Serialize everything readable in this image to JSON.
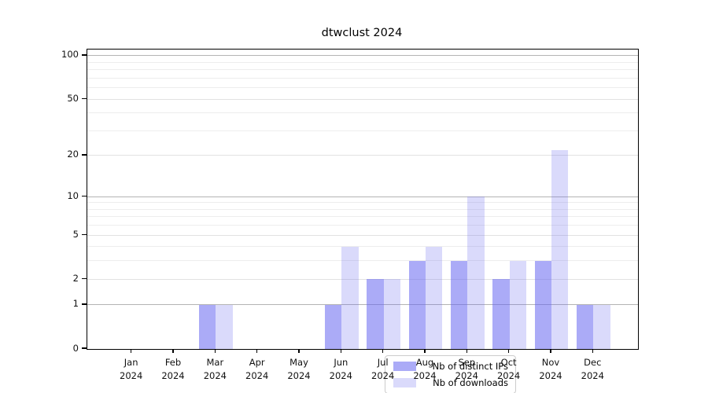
{
  "title": "dtwclust 2024",
  "chart_data": {
    "type": "bar",
    "title": "dtwclust 2024",
    "yscale": "log1p",
    "grid": true,
    "legend_position": "lower center",
    "categories": [
      "Jan 2024",
      "Feb 2024",
      "Mar 2024",
      "Apr 2024",
      "May 2024",
      "Jun 2024",
      "Jul 2024",
      "Aug 2024",
      "Sep 2024",
      "Oct 2024",
      "Nov 2024",
      "Dec 2024"
    ],
    "series": [
      {
        "name": "Nb of distinct IPs",
        "color": "#a9a9f8",
        "fill": "rgba(102,102,240,0.55)",
        "values": [
          0,
          0,
          1,
          0,
          0,
          1,
          2,
          3,
          3,
          2,
          3,
          1
        ]
      },
      {
        "name": "Nb of downloads",
        "color": "#dcdcf9",
        "fill": "rgba(102,102,240,0.24)",
        "values": [
          0,
          0,
          1,
          0,
          0,
          4,
          2,
          4,
          10,
          3,
          22,
          1
        ]
      }
    ],
    "yticks": [
      0,
      1,
      2,
      5,
      10,
      20,
      50,
      100
    ],
    "yticks_decade": [
      1,
      10,
      100
    ],
    "yticks_minor": [
      3,
      4,
      6,
      7,
      8,
      9,
      30,
      40,
      60,
      70,
      80,
      90
    ],
    "ylim": [
      0,
      111
    ],
    "xlabel": "",
    "ylabel": ""
  },
  "colors": {
    "grid_decade": "#b4b4b4",
    "grid_major": "#e2e2e2",
    "grid_minor": "#ededed",
    "axis": "#000000",
    "background": "#ffffff"
  }
}
